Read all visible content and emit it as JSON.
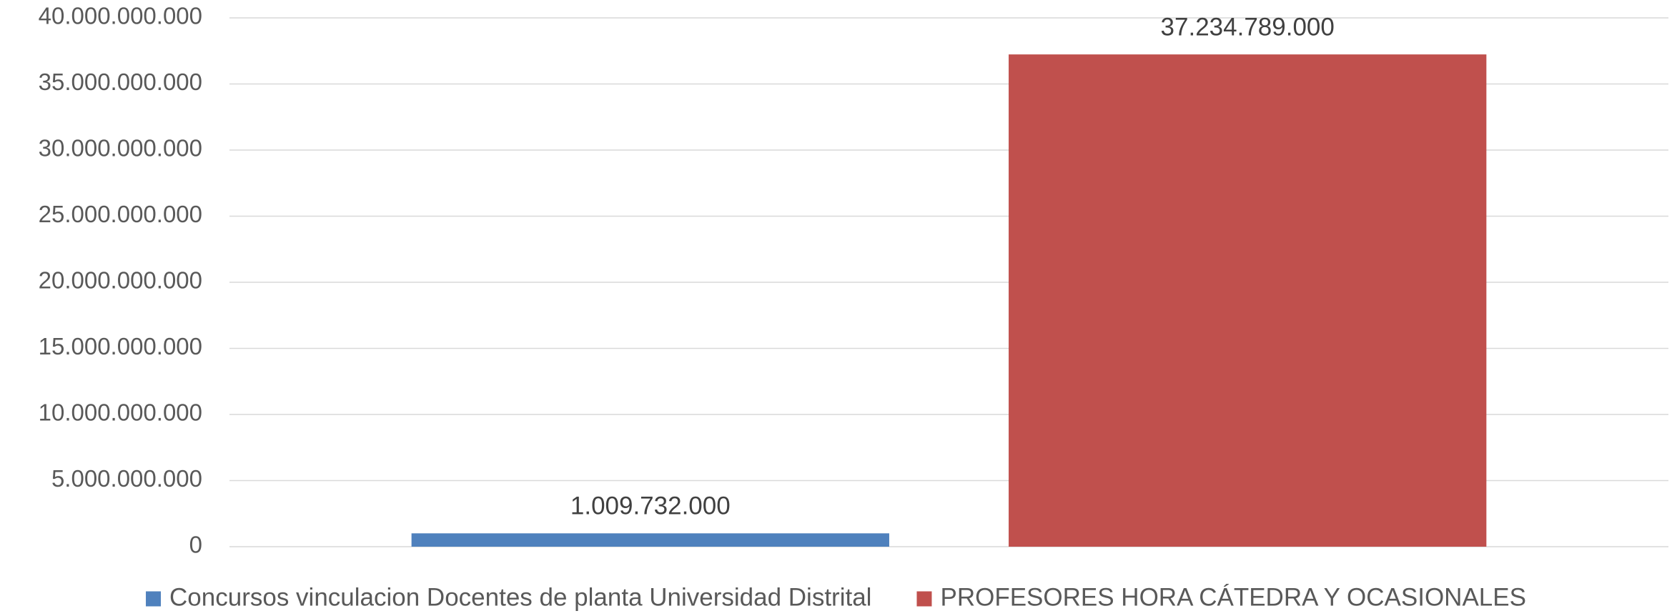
{
  "chart_data": {
    "type": "bar",
    "categories": [
      null
    ],
    "series": [
      {
        "name": "Concursos vinculacion Docentes de planta Universidad Distrital",
        "color": "#4f81bd",
        "values": [
          1009732000
        ],
        "value_labels": [
          "1.009.732.000"
        ]
      },
      {
        "name": "PROFESORES HORA CÁTEDRA Y OCASIONALES",
        "color": "#c0504d",
        "values": [
          37234789000
        ],
        "value_labels": [
          "37.234.789.000"
        ]
      }
    ],
    "ylim": [
      0,
      40000000000
    ],
    "yticks": [
      0,
      {
        "value": 5000000000,
        "label": "5.000.000.000"
      },
      {
        "value": 10000000000,
        "label": "10.000.000.000"
      },
      {
        "value": 15000000000,
        "label": "15.000.000.000"
      },
      {
        "value": 20000000000,
        "label": "20.000.000.000"
      },
      {
        "value": 25000000000,
        "label": "25.000.000.000"
      },
      {
        "value": 30000000000,
        "label": "30.000.000.000"
      },
      {
        "value": 35000000000,
        "label": "35.000.000.000"
      },
      {
        "value": 40000000000,
        "label": "40.000.000.000"
      }
    ],
    "grid": true,
    "legend": "bottom"
  }
}
